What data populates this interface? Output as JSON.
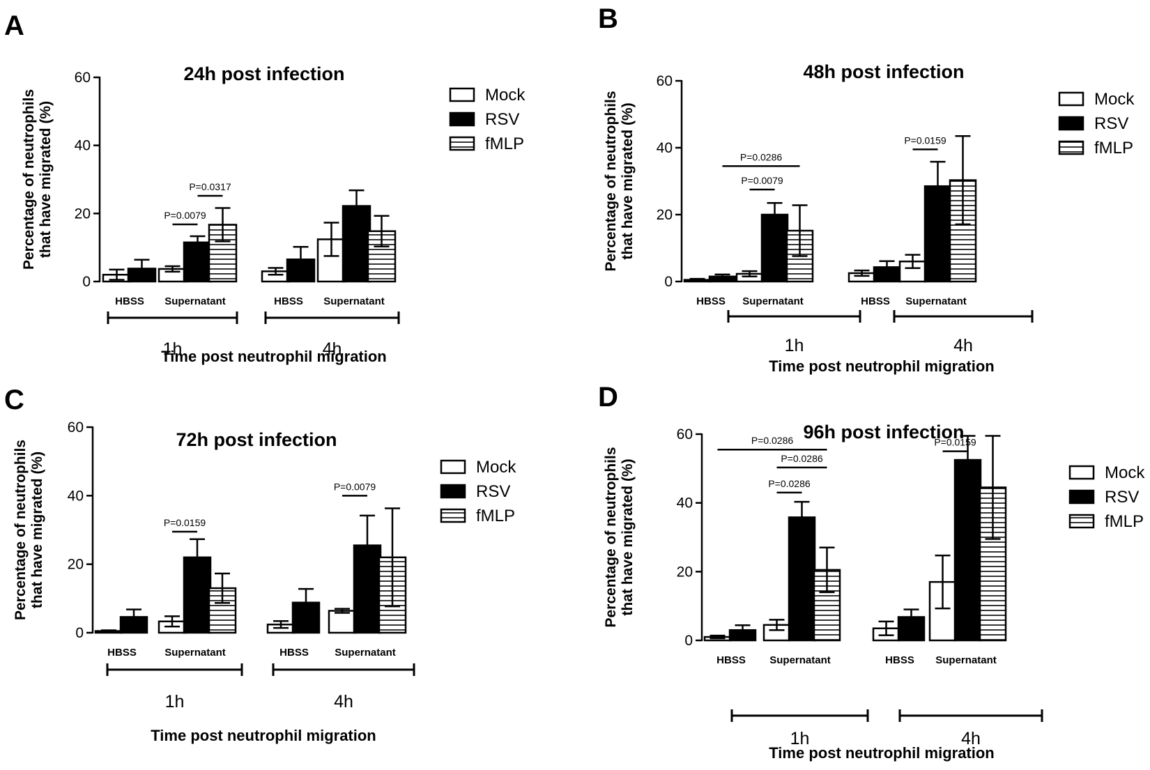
{
  "figure": {
    "group_labels": [
      "HBSS",
      "Supernatant"
    ],
    "time_labels": [
      "1h",
      "4h"
    ],
    "series_names": [
      "Mock",
      "RSV",
      "fMLP"
    ]
  },
  "chart_data": [
    {
      "type": "bar",
      "panel": "A",
      "title": "24h post infection",
      "ylabel_line1": "Percentage of neutrophils",
      "ylabel_line2": "that have migrated (%)",
      "xlabel": "Time post neutrophil migration",
      "ylim": [
        0,
        60
      ],
      "yticks": [
        0,
        20,
        40,
        60
      ],
      "groups": [
        {
          "time": "1h",
          "label": "HBSS",
          "bars": [
            {
              "series": "Mock",
              "value": 2,
              "err": 1.5
            },
            {
              "series": "RSV",
              "value": 3.8,
              "err": 2.6
            }
          ]
        },
        {
          "time": "1h",
          "label": "Supernatant",
          "bars": [
            {
              "series": "Mock",
              "value": 3.7,
              "err": 0.8
            },
            {
              "series": "RSV",
              "value": 11.5,
              "err": 1.8
            },
            {
              "series": "fMLP",
              "value": 16.7,
              "err": 4.9
            }
          ]
        },
        {
          "time": "4h",
          "label": "HBSS",
          "bars": [
            {
              "series": "Mock",
              "value": 3,
              "err": 1
            },
            {
              "series": "RSV",
              "value": 6.5,
              "err": 3.7
            }
          ]
        },
        {
          "time": "4h",
          "label": "Supernatant",
          "bars": [
            {
              "series": "Mock",
              "value": 12.4,
              "err": 4.9
            },
            {
              "series": "RSV",
              "value": 22.2,
              "err": 4.6
            },
            {
              "series": "fMLP",
              "value": 14.8,
              "err": 4.5
            }
          ]
        }
      ],
      "annotations": [
        {
          "text": "P=0.0079",
          "from_bar": [
            1,
            0
          ],
          "to_bar": [
            1,
            1
          ],
          "y": 16.8
        },
        {
          "text": "P=0.0317",
          "from_bar": [
            1,
            1
          ],
          "to_bar": [
            1,
            2
          ],
          "y": 25.2
        }
      ]
    },
    {
      "type": "bar",
      "panel": "B",
      "title": "48h post infection",
      "ylabel_line1": "Percentage of neutrophils",
      "ylabel_line2": "that have migrated (%)",
      "xlabel": "Time post neutrophil migration",
      "ylim": [
        0,
        60
      ],
      "yticks": [
        0,
        20,
        40,
        60
      ],
      "groups": [
        {
          "time": "1h",
          "label": "HBSS",
          "bars": [
            {
              "series": "Mock",
              "value": 0.5,
              "err": 0.3
            },
            {
              "series": "RSV",
              "value": 1.5,
              "err": 0.6
            }
          ]
        },
        {
          "time": "1h",
          "label": "Supernatant",
          "bars": [
            {
              "series": "Mock",
              "value": 2.3,
              "err": 0.8
            },
            {
              "series": "RSV",
              "value": 20,
              "err": 3.5
            },
            {
              "series": "fMLP",
              "value": 15.2,
              "err": 7.6
            }
          ]
        },
        {
          "time": "4h",
          "label": "HBSS",
          "bars": [
            {
              "series": "Mock",
              "value": 2.5,
              "err": 0.8
            },
            {
              "series": "RSV",
              "value": 4.3,
              "err": 1.8
            }
          ]
        },
        {
          "time": "4h",
          "label": "Supernatant",
          "bars": [
            {
              "series": "Mock",
              "value": 6,
              "err": 2
            },
            {
              "series": "RSV",
              "value": 28.5,
              "err": 7.3
            },
            {
              "series": "fMLP",
              "value": 30.3,
              "err": 13.2
            }
          ]
        }
      ],
      "annotations": [
        {
          "text": "P=0.0286",
          "from_bar": [
            0,
            1
          ],
          "to_bar": [
            1,
            2
          ],
          "y": 34.5
        },
        {
          "text": "P=0.0079",
          "from_bar": [
            1,
            0
          ],
          "to_bar": [
            1,
            1
          ],
          "y": 27.5
        },
        {
          "text": "P=0.0159",
          "from_bar": [
            3,
            0
          ],
          "to_bar": [
            3,
            1
          ],
          "y": 39.5
        }
      ]
    },
    {
      "type": "bar",
      "panel": "C",
      "title": "72h post infection",
      "ylabel_line1": "Percentage of neutrophils",
      "ylabel_line2": "that have migrated (%)",
      "xlabel": "Time post neutrophil migration",
      "ylim": [
        0,
        60
      ],
      "yticks": [
        0,
        20,
        40,
        60
      ],
      "groups": [
        {
          "time": "1h",
          "label": "HBSS",
          "bars": [
            {
              "series": "Mock",
              "value": 0.5,
              "err": 0.2
            },
            {
              "series": "RSV",
              "value": 4.6,
              "err": 2.2
            }
          ]
        },
        {
          "time": "1h",
          "label": "Supernatant",
          "bars": [
            {
              "series": "Mock",
              "value": 3.3,
              "err": 1.5
            },
            {
              "series": "RSV",
              "value": 22,
              "err": 5.3
            },
            {
              "series": "fMLP",
              "value": 13,
              "err": 4.3
            }
          ]
        },
        {
          "time": "4h",
          "label": "HBSS",
          "bars": [
            {
              "series": "Mock",
              "value": 2.4,
              "err": 1
            },
            {
              "series": "RSV",
              "value": 8.8,
              "err": 4
            }
          ]
        },
        {
          "time": "4h",
          "label": "Supernatant",
          "bars": [
            {
              "series": "Mock",
              "value": 6.4,
              "err": 0.6
            },
            {
              "series": "RSV",
              "value": 25.5,
              "err": 8.7
            },
            {
              "series": "fMLP",
              "value": 22,
              "err": 14.3
            }
          ]
        }
      ],
      "annotations": [
        {
          "text": "P=0.0159",
          "from_bar": [
            1,
            0
          ],
          "to_bar": [
            1,
            1
          ],
          "y": 29.5
        },
        {
          "text": "P=0.0079",
          "from_bar": [
            3,
            0
          ],
          "to_bar": [
            3,
            1
          ],
          "y": 40
        }
      ]
    },
    {
      "type": "bar",
      "panel": "D",
      "title": "96h post infection",
      "ylabel_line1": "Percentage of neutrophils",
      "ylabel_line2": "that have migrated (%)",
      "xlabel": "Time post neutrophil migration",
      "ylim": [
        0,
        60
      ],
      "yticks": [
        0,
        20,
        40,
        60
      ],
      "groups": [
        {
          "time": "1h",
          "label": "HBSS",
          "bars": [
            {
              "series": "Mock",
              "value": 1,
              "err": 0.4
            },
            {
              "series": "RSV",
              "value": 3,
              "err": 1.4
            }
          ]
        },
        {
          "time": "1h",
          "label": "Supernatant",
          "bars": [
            {
              "series": "Mock",
              "value": 4.5,
              "err": 1.5
            },
            {
              "series": "RSV",
              "value": 35.8,
              "err": 4.5
            },
            {
              "series": "fMLP",
              "value": 20.5,
              "err": 6.5
            }
          ]
        },
        {
          "time": "4h",
          "label": "HBSS",
          "bars": [
            {
              "series": "Mock",
              "value": 3.5,
              "err": 2
            },
            {
              "series": "RSV",
              "value": 6.8,
              "err": 2.2
            }
          ]
        },
        {
          "time": "4h",
          "label": "Supernatant",
          "bars": [
            {
              "series": "Mock",
              "value": 17,
              "err": 7.7
            },
            {
              "series": "RSV",
              "value": 52.5,
              "err": 7
            },
            {
              "series": "fMLP",
              "value": 44.5,
              "err": 15
            }
          ]
        }
      ],
      "annotations": [
        {
          "text": "P=0.0286",
          "from_bar": [
            0,
            0
          ],
          "to_bar": [
            1,
            2
          ],
          "y": 55.5
        },
        {
          "text": "P=0.0286",
          "from_bar": [
            1,
            0
          ],
          "to_bar": [
            1,
            2
          ],
          "y": 50.3
        },
        {
          "text": "P=0.0286",
          "from_bar": [
            1,
            0
          ],
          "to_bar": [
            1,
            1
          ],
          "y": 43
        },
        {
          "text": "P=0.0159",
          "from_bar": [
            3,
            0
          ],
          "to_bar": [
            3,
            1
          ],
          "y": 55
        }
      ]
    }
  ]
}
